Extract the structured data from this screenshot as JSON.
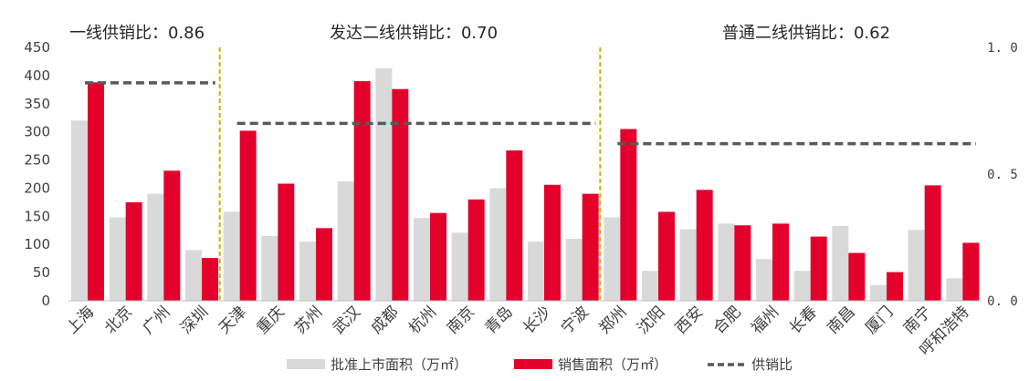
{
  "chart_data": {
    "type": "bar",
    "categories": [
      "上海",
      "北京",
      "广州",
      "深圳",
      "天津",
      "重庆",
      "苏州",
      "武汉",
      "成都",
      "杭州",
      "南京",
      "青岛",
      "长沙",
      "宁波",
      "郑州",
      "沈阳",
      "西安",
      "合肥",
      "福州",
      "长春",
      "南昌",
      "厦门",
      "南宁",
      "呼和浩特"
    ],
    "series": [
      {
        "name": "批准上市面积（万㎡）",
        "color": "#d9d9d9",
        "values": [
          320,
          148,
          190,
          90,
          158,
          115,
          105,
          212,
          413,
          147,
          121,
          200,
          105,
          110,
          148,
          53,
          127,
          137,
          74,
          53,
          133,
          28,
          126,
          40
        ]
      },
      {
        "name": "销售面积（万㎡）",
        "color": "#e3002b",
        "values": [
          388,
          175,
          231,
          76,
          302,
          208,
          129,
          390,
          376,
          156,
          180,
          267,
          206,
          190,
          305,
          158,
          197,
          134,
          137,
          114,
          85,
          51,
          205,
          103
        ]
      }
    ],
    "ratio_series": {
      "name": "供销比",
      "color": "#595959",
      "style": "dashed"
    },
    "groups": [
      {
        "label": "一线供销比：0.86",
        "start": 0,
        "end": 3,
        "ratio": 0.86
      },
      {
        "label": "发达二线供销比：0.70",
        "start": 4,
        "end": 13,
        "ratio": 0.7
      },
      {
        "label": "普通二线供销比：0.62",
        "start": 14,
        "end": 23,
        "ratio": 0.62
      }
    ],
    "y_left": {
      "min": 0,
      "max": 450,
      "ticks": [
        0,
        50,
        100,
        150,
        200,
        250,
        300,
        350,
        400,
        450
      ]
    },
    "y_right": {
      "min": 0,
      "max": 1.0,
      "ticks": [
        "0. 0",
        "0. 5",
        "1. 0"
      ],
      "tick_values": [
        0,
        0.5,
        1.0
      ]
    },
    "separator_color": "#b5bd00",
    "legend_position": "bottom",
    "grid": false
  }
}
